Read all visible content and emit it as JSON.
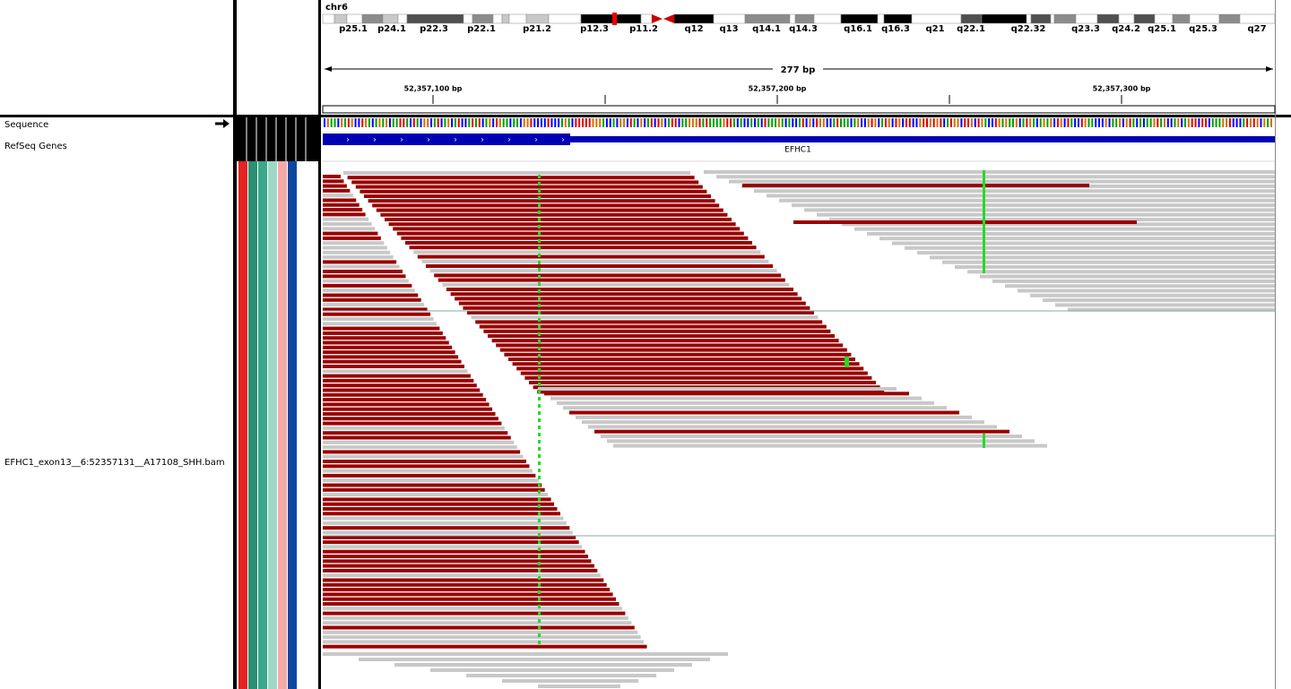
{
  "header": {
    "chromosome": "chr6",
    "cytobands": [
      "p25.1",
      "p24.1",
      "p22.3",
      "p22.1",
      "p21.2",
      "p12.3",
      "p11.2",
      "q12",
      "q13",
      "q14.1",
      "q14.3",
      "q16.1",
      "q16.3",
      "q21",
      "q22.1",
      "q22.32",
      "q23.3",
      "q24.2",
      "q25.1",
      "q25.3",
      "q27"
    ],
    "span": "277 bp",
    "positions": [
      "52,357,100 bp",
      "52,357,200 bp",
      "52,357,300 bp"
    ]
  },
  "tracks": {
    "sequence": "Sequence",
    "refseq": "RefSeq Genes",
    "gene": "EFHC1",
    "alignment": "EFHC1_exon13__6:52357131__A17108_SHH.bam"
  }
}
